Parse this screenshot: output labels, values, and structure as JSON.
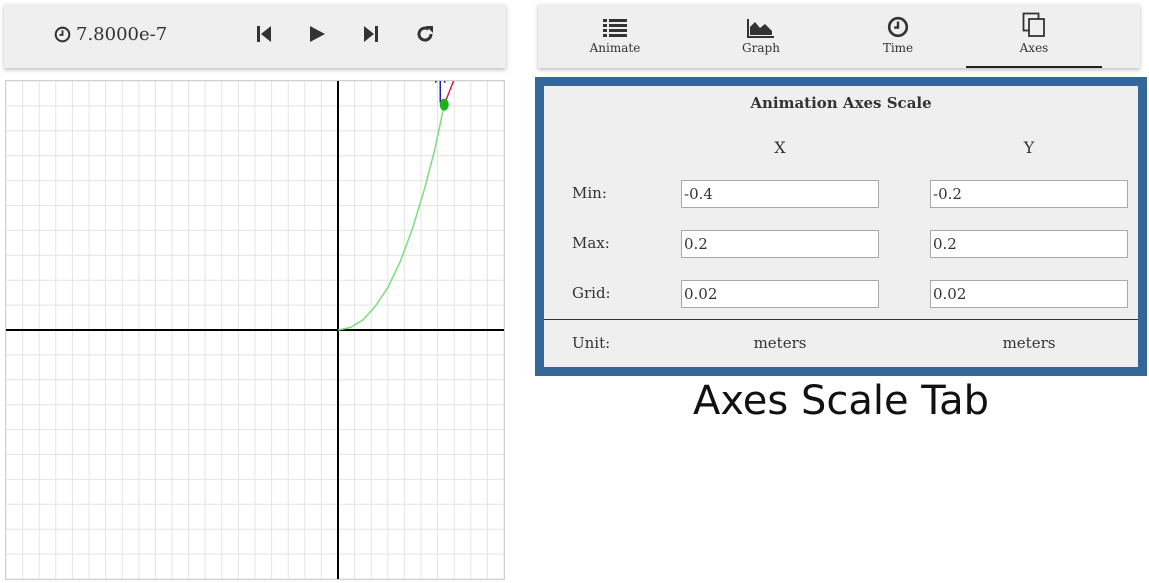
{
  "toolbar": {
    "time_value": "7.8000e-7",
    "buttons": {
      "step_back": "skip-back-icon",
      "play": "play-icon",
      "step_forward": "skip-forward-icon",
      "reset": "reload-icon"
    }
  },
  "tabs": [
    {
      "label": "Animate",
      "icon": "list-icon"
    },
    {
      "label": "Graph",
      "icon": "area-chart-icon"
    },
    {
      "label": "Time",
      "icon": "clock-icon"
    },
    {
      "label": "Axes",
      "icon": "copy-icon",
      "active": true
    }
  ],
  "axes_panel": {
    "title": "Animation Axes Scale",
    "col_x": "X",
    "col_y": "Y",
    "rows": {
      "min": {
        "label": "Min:",
        "x": "-0.4",
        "y": "-0.2"
      },
      "max": {
        "label": "Max:",
        "x": "0.2",
        "y": "0.2"
      },
      "grid": {
        "label": "Grid:",
        "x": "0.02",
        "y": "0.02"
      }
    },
    "unit": {
      "label": "Unit:",
      "x": "meters",
      "y": "meters"
    }
  },
  "caption": "Axes Scale Tab",
  "animation": {
    "x_range": [
      -0.4,
      0.2
    ],
    "y_range": [
      -0.2,
      0.2
    ],
    "grid": 0.02,
    "trajectory": [
      [
        0,
        0
      ],
      [
        0.015,
        0.002
      ],
      [
        0.03,
        0.008
      ],
      [
        0.045,
        0.019
      ],
      [
        0.06,
        0.034
      ],
      [
        0.075,
        0.055
      ],
      [
        0.09,
        0.082
      ],
      [
        0.105,
        0.115
      ],
      [
        0.117,
        0.146
      ],
      [
        0.128,
        0.181
      ]
    ],
    "particle": [
      0.128,
      0.181
    ],
    "colors": {
      "trajectory": "#7ddc7d",
      "particle": "#1ab31a",
      "velocity_vector": "#e0103a",
      "accel_vector": "#1010c8",
      "grid": "#e4e4e4",
      "axes": "#000000"
    }
  }
}
